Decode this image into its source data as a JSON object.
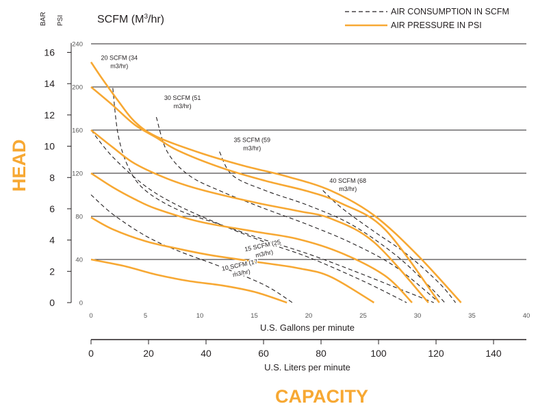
{
  "header": {
    "bar_label": "BAR",
    "psi_label": "PSI",
    "scfm_label": "SCFM (M",
    "scfm_sup": "3",
    "scfm_tail": "/hr)"
  },
  "legend": {
    "items": [
      {
        "label": "AIR CONSUMPTION IN SCFM",
        "style": "dashed"
      },
      {
        "label": "AIR PRESSURE IN PSI",
        "style": "solid"
      }
    ]
  },
  "side_label": "HEAD",
  "bottom_label": "CAPACITY",
  "colors": {
    "pressure": "#f7a833",
    "consumption": "#231f20",
    "grid": "#231f20",
    "accent": "#f7a833"
  },
  "chart_data": {
    "type": "line",
    "xlabel": "U.S. Gallons per minute",
    "xlim": [
      0,
      40
    ],
    "x_ticks": [
      "0",
      "5",
      "10",
      "15",
      "20",
      "25",
      "30",
      "35",
      "40"
    ],
    "x2label": "U.S. Liters per minute",
    "x2lim": [
      0,
      160
    ],
    "x2_ticks": [
      "0",
      "20",
      "40",
      "60",
      "80",
      "100",
      "120",
      "140"
    ],
    "ylabel": "PSI",
    "ylim": [
      0,
      240
    ],
    "y_ticks": [
      "0",
      "40",
      "80",
      "120",
      "160",
      "200",
      "240"
    ],
    "bar_ticks": [
      "0",
      "2",
      "4",
      "6",
      "8",
      "10",
      "12",
      "14",
      "16"
    ],
    "grid": true,
    "legend_position": "top-right",
    "pressure_series": [
      {
        "psi": 40,
        "points": [
          [
            0,
            40
          ],
          [
            3,
            34
          ],
          [
            6,
            26
          ],
          [
            9,
            20
          ],
          [
            12,
            16
          ],
          [
            15,
            10
          ],
          [
            18,
            0
          ]
        ]
      },
      {
        "psi": 80,
        "points": [
          [
            0,
            79
          ],
          [
            2,
            68
          ],
          [
            5,
            57
          ],
          [
            8,
            50
          ],
          [
            11,
            44
          ],
          [
            15,
            38
          ],
          [
            19,
            32
          ],
          [
            22,
            24
          ],
          [
            26,
            0
          ]
        ]
      },
      {
        "psi": 120,
        "points": [
          [
            0,
            120
          ],
          [
            2,
            107
          ],
          [
            4,
            96
          ],
          [
            6,
            87
          ],
          [
            10,
            75
          ],
          [
            15,
            66
          ],
          [
            19,
            59
          ],
          [
            23,
            46
          ],
          [
            27,
            25
          ],
          [
            29.5,
            0
          ]
        ]
      },
      {
        "psi": 160,
        "points": [
          [
            0,
            160
          ],
          [
            2,
            144
          ],
          [
            4,
            129
          ],
          [
            7,
            115
          ],
          [
            10,
            105
          ],
          [
            15,
            93
          ],
          [
            19,
            85
          ],
          [
            22,
            78
          ],
          [
            26,
            56
          ],
          [
            31,
            0
          ]
        ]
      },
      {
        "psi": 200,
        "points": [
          [
            0,
            200
          ],
          [
            2,
            183
          ],
          [
            4,
            165
          ],
          [
            6,
            153
          ],
          [
            8,
            141
          ],
          [
            12,
            125
          ],
          [
            16,
            113
          ],
          [
            20,
            103
          ],
          [
            23,
            92
          ],
          [
            27,
            68
          ],
          [
            32,
            0
          ]
        ]
      },
      {
        "psi": 220,
        "points": [
          [
            0,
            223
          ],
          [
            1,
            208
          ],
          [
            2.5,
            187
          ],
          [
            4,
            168
          ],
          [
            6,
            154
          ],
          [
            10,
            139
          ],
          [
            14,
            127
          ],
          [
            18,
            117
          ],
          [
            22,
            104
          ],
          [
            26,
            81
          ],
          [
            30,
            44
          ],
          [
            34,
            0
          ]
        ]
      }
    ],
    "consumption_series": [
      {
        "scfm": 10,
        "points": [
          [
            0,
            100
          ],
          [
            2,
            82
          ],
          [
            5,
            62
          ],
          [
            8,
            48
          ],
          [
            12,
            33
          ],
          [
            16,
            16
          ],
          [
            18.5,
            0
          ]
        ]
      },
      {
        "scfm": 15,
        "points": [
          [
            0,
            160
          ],
          [
            2,
            135
          ],
          [
            5,
            108
          ],
          [
            8,
            90
          ],
          [
            12,
            72
          ],
          [
            16,
            56
          ],
          [
            20,
            42
          ],
          [
            25,
            20
          ],
          [
            29,
            0
          ]
        ]
      },
      {
        "scfm": 20,
        "points": [
          [
            2.0,
            199
          ],
          [
            2.5,
            155
          ],
          [
            3.5,
            124
          ],
          [
            5,
            104
          ],
          [
            8,
            86
          ],
          [
            12,
            72
          ],
          [
            16,
            58
          ],
          [
            20,
            45
          ],
          [
            24,
            30
          ],
          [
            28,
            14
          ],
          [
            31.5,
            0
          ]
        ]
      },
      {
        "scfm": 30,
        "points": [
          [
            6.0,
            172
          ],
          [
            7,
            140
          ],
          [
            9,
            118
          ],
          [
            12,
            103
          ],
          [
            16,
            87
          ],
          [
            20,
            72
          ],
          [
            24,
            55
          ],
          [
            28,
            33
          ],
          [
            32,
            0
          ]
        ]
      },
      {
        "scfm": 35,
        "points": [
          [
            11.8,
            140
          ],
          [
            13,
            118
          ],
          [
            16,
            104
          ],
          [
            20,
            90
          ],
          [
            24,
            72
          ],
          [
            28,
            44
          ],
          [
            31,
            16
          ],
          [
            32.5,
            0
          ]
        ]
      },
      {
        "scfm": 40,
        "points": [
          [
            21.3,
            104
          ],
          [
            23,
            88
          ],
          [
            26,
            66
          ],
          [
            29,
            45
          ],
          [
            32,
            18
          ],
          [
            33.5,
            0
          ]
        ]
      }
    ],
    "annotations": [
      {
        "text": [
          "20 SCFM (34",
          "m3/hr)"
        ],
        "x": 2.6,
        "y": 225,
        "angle": 0
      },
      {
        "text": [
          "30 SCFM (51",
          "m3/hr)"
        ],
        "x": 8.4,
        "y": 188,
        "angle": 0
      },
      {
        "text": [
          "35 SCFM (59",
          "m3/hr)"
        ],
        "x": 14.8,
        "y": 149,
        "angle": 0
      },
      {
        "text": [
          "40 SCFM (68",
          "m3/hr)"
        ],
        "x": 23.6,
        "y": 111,
        "angle": 0
      },
      {
        "text": [
          "15 SCFM (25",
          "m3/hr)"
        ],
        "x": 15.8,
        "y": 51,
        "angle": -12
      },
      {
        "text": [
          "10 SCFM (17",
          "m3/hr)"
        ],
        "x": 13.7,
        "y": 33,
        "angle": -12
      }
    ]
  }
}
